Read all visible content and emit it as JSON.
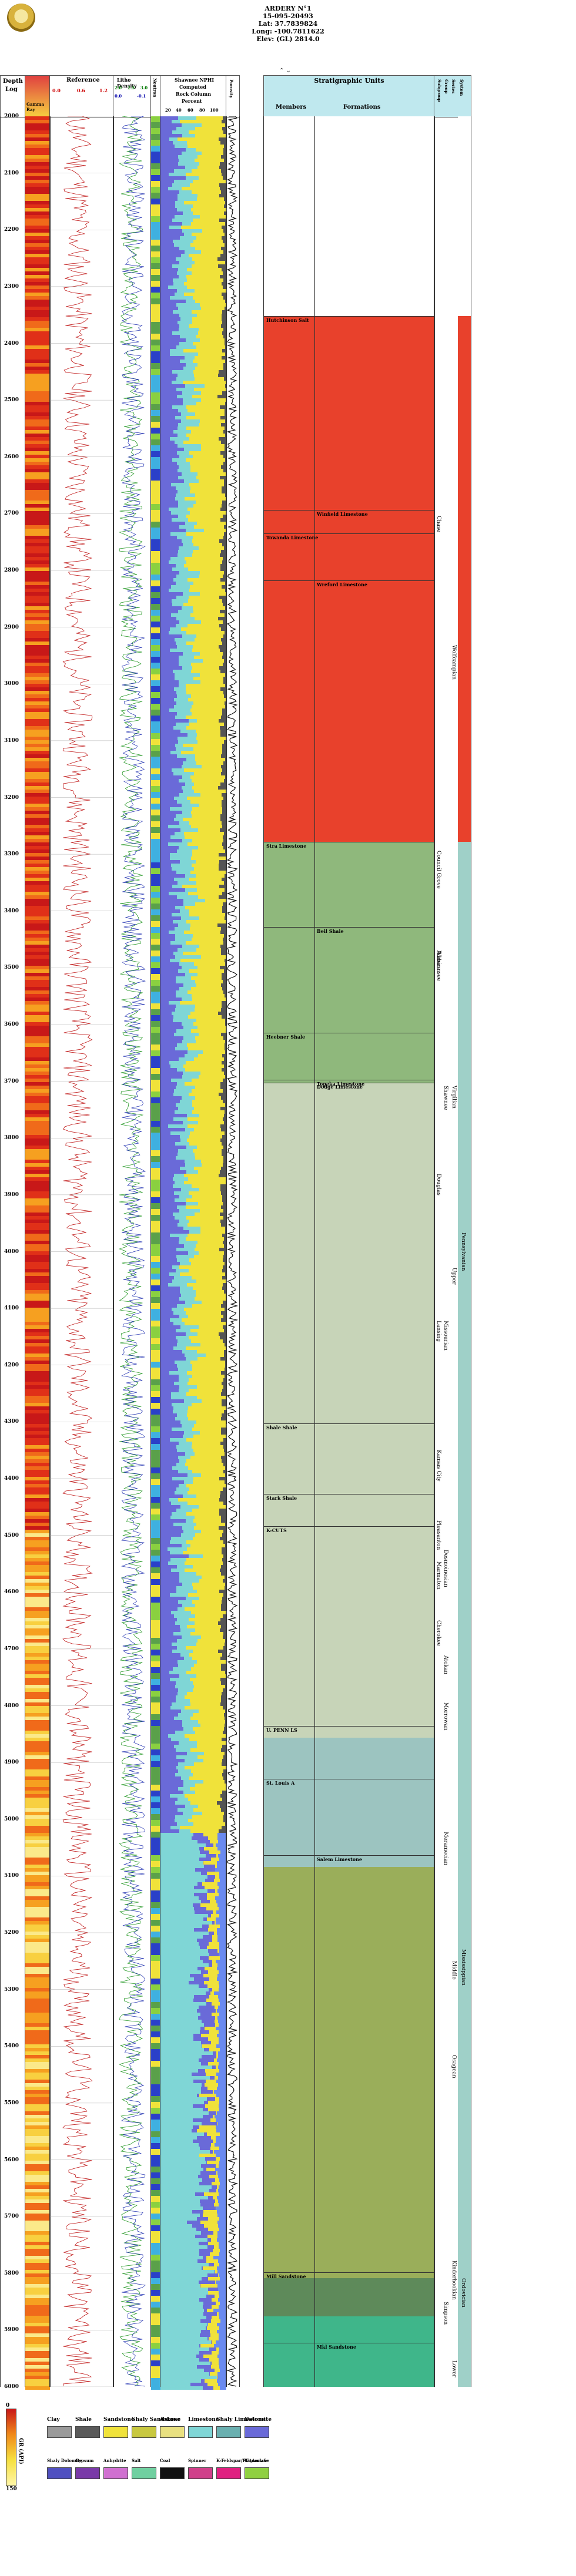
{
  "header": {
    "well_name": "ARDERY N°1",
    "api": "15-095-20493",
    "lat": "Lat: 37.7839824",
    "long": "Long: -100.7811622",
    "elev": "Elev: (GL) 2814.0"
  },
  "columns": {
    "depth": "Depth",
    "log": "Log",
    "gamma": "Gamma Ray",
    "reference": "Reference",
    "litho_density": "Litho Density",
    "neutron": "Neutron",
    "shawnee": "Shawnee NPHI",
    "computed": "Computed",
    "rock_column": "Rock Column",
    "percent": "Percent",
    "porosity": "Porosity",
    "strat_title": "Stratigraphic Units",
    "members": "Members",
    "formations": "Formations",
    "group": "Group",
    "series": "Series",
    "system": "System",
    "subgroup": "Subgroup"
  },
  "ref_scale": {
    "a": "0.0",
    "b": "0.6",
    "c": "1.2"
  },
  "density_scale": {
    "a": "2.0",
    "b": "2.5",
    "c": "3.0",
    "d": "0.0",
    "e": "-0.1"
  },
  "percent_ticks": [
    "20",
    "40",
    "60",
    "80",
    "100"
  ],
  "depths": [
    "2000",
    "2100",
    "2200",
    "2300",
    "2400",
    "2500",
    "2600",
    "2700",
    "2800",
    "2900",
    "3000",
    "3100",
    "3200",
    "3300",
    "3400",
    "3500",
    "3600",
    "3700",
    "3800",
    "3900",
    "4000",
    "4100",
    "4200",
    "4300",
    "4400",
    "4500",
    "4600",
    "4700",
    "4800",
    "4900",
    "5000",
    "5100",
    "5200",
    "5300",
    "5400",
    "5500",
    "5600",
    "5700",
    "5800",
    "5900",
    "6000"
  ],
  "units": [
    {
      "label": "Hutchinson Salt",
      "col": "members"
    },
    {
      "label": "Winfield Limestone",
      "col": "formations"
    },
    {
      "label": "Towanda Limestone",
      "col": "members"
    },
    {
      "label": "Wreford Limestone",
      "col": "formations"
    },
    {
      "label": "Stra Limestone",
      "col": "members"
    },
    {
      "label": "Beil Shale",
      "col": "formations"
    },
    {
      "label": "Heebner Shale",
      "col": "members"
    },
    {
      "label": "Dodge Limestone",
      "col": "formations"
    },
    {
      "label": "Topeka Limestone",
      "col": "formations"
    },
    {
      "label": "Shale Shale",
      "col": "members"
    },
    {
      "label": "Stark Shale",
      "col": "members"
    },
    {
      "label": "K-CUTS",
      "col": "members"
    },
    {
      "label": "U. PENN LS",
      "col": "members"
    },
    {
      "label": "St. Louis A",
      "col": "members"
    },
    {
      "label": "Salem Limestone",
      "col": "formations"
    },
    {
      "label": "Mill Sandstone",
      "col": "members"
    },
    {
      "label": "Mkl Sandstone",
      "col": "formations"
    }
  ],
  "vertical_labels": [
    "Chase",
    "Council Grove",
    "Admire",
    "Wolfcampian",
    "Wabaunsee",
    "Shawnee",
    "Virgilian",
    "Douglas",
    "Lansing",
    "Kansas City",
    "Pleasanton",
    "Marmaton",
    "Cherokee",
    "Missourian",
    "Desmoinesian",
    "Atokan",
    "Morrowan",
    "Upper",
    "Pennsylvanian",
    "Meramecian",
    "Middle",
    "Mississippian",
    "Osagean",
    "Kinderhookian",
    "Lower",
    "Ordovician",
    "Simpson"
  ],
  "legend": {
    "row1": [
      "Clay",
      "Shale",
      "Sandstone",
      "Shaly Sandstone",
      "Arkose",
      "Limestone",
      "Shaly Limestone",
      "Dolomite"
    ],
    "row2": [
      "Shaly Dolomite",
      "Gypsum",
      "Anhydrite",
      "Salt",
      "Coal",
      "Spinner",
      "K-Feldspar/Plagioclase",
      "Ultramafic"
    ],
    "gamma_scale_top": "0",
    "gamma_scale_bottom": "150",
    "gamma_unit": "GR (API)"
  },
  "colors": {
    "salt": "#e8412c",
    "green1": "#8fb87c",
    "grey_green": "#c7d4b8",
    "teal": "#9cc4c0",
    "olive": "#9aae5a",
    "deep_green": "#5e8a5a",
    "emerald": "#3fb68a",
    "limestone": "#7fd6d6",
    "dolomite": "#6a6ad8",
    "sand": "#f0e23a"
  }
}
